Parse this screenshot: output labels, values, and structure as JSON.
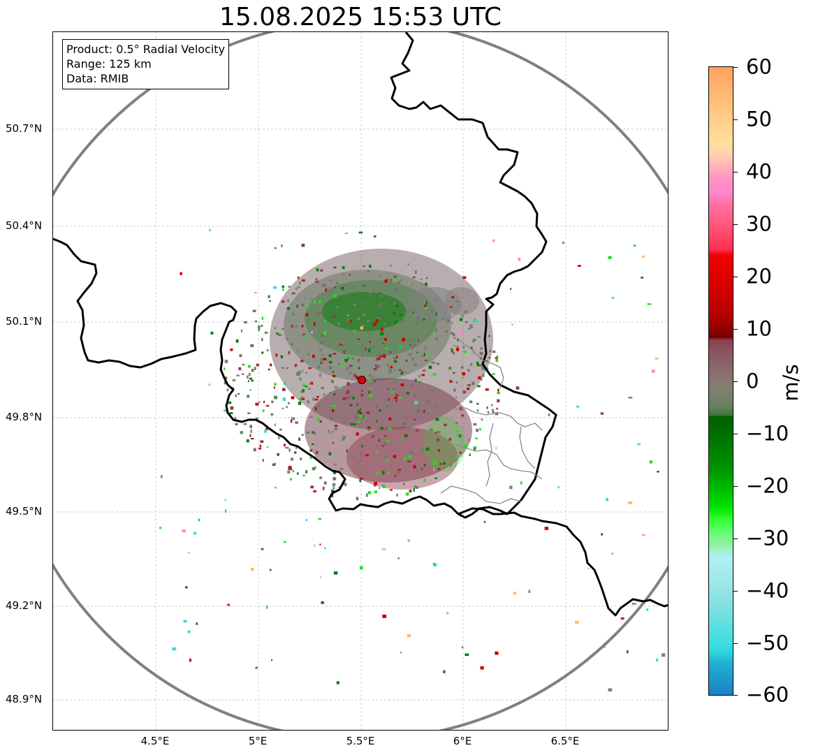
{
  "title": "15.08.2025 15:53 UTC",
  "info": {
    "product": "Product: 0.5° Radial Velocity",
    "range": "Range: 125 km",
    "data": "Data: RMIB"
  },
  "lat_ticks": [
    "50.7°N",
    "50.4°N",
    "50.1°N",
    "49.8°N",
    "49.5°N",
    "49.2°N",
    "48.9°N"
  ],
  "lon_ticks": [
    "4.5°E",
    "5°E",
    "5.5°E",
    "6°E",
    "6.5°E"
  ],
  "colorbar": {
    "unit": "m/s",
    "min": -60,
    "max": 60,
    "tick_labels": [
      "60",
      "50",
      "40",
      "30",
      "20",
      "10",
      "0",
      "−10",
      "−20",
      "−30",
      "−40",
      "−50",
      "−60"
    ]
  },
  "radar_site": {
    "lat": 49.91,
    "lon": 5.505
  },
  "radar_range_km": 125,
  "colors": {
    "range_ring": "#808080",
    "border": "#000000",
    "admin_border": "#888888",
    "site_marker": "#dd0000"
  }
}
